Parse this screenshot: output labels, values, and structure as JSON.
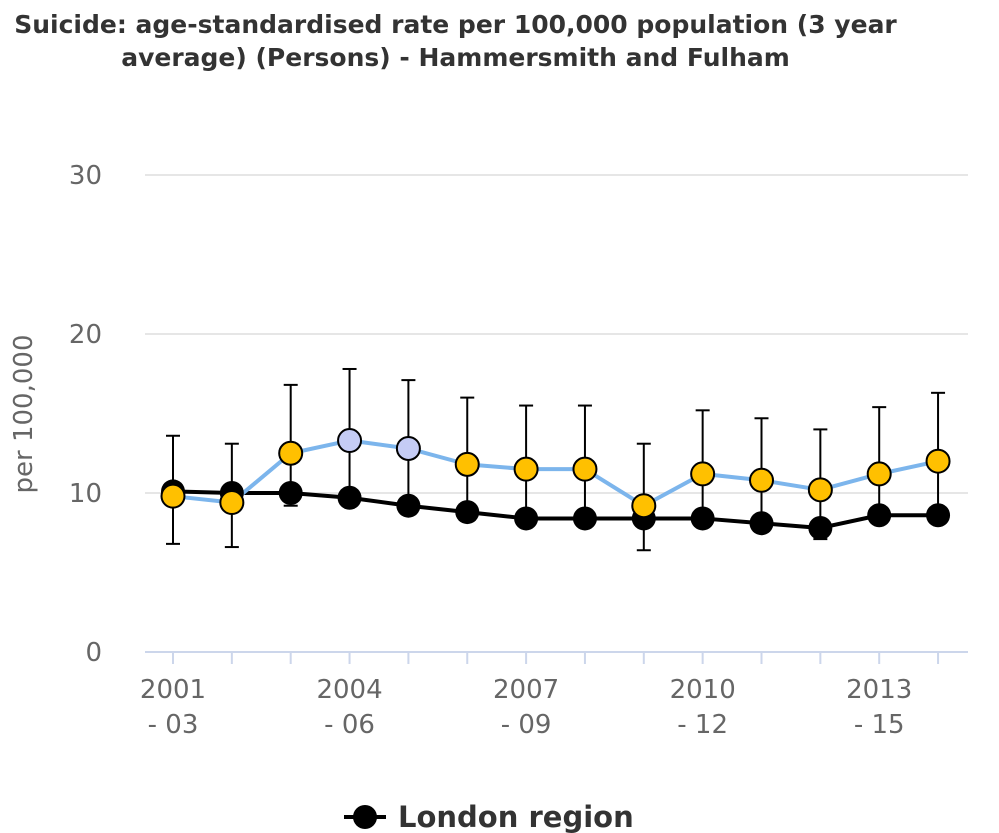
{
  "chart_data": {
    "type": "line",
    "title": "Suicide: age-standardised rate per 100,000 population (3 year average) (Persons) - Hammersmith and Fulham",
    "title_lines": [
      "Suicide: age-standardised rate per 100,000 population (3 year",
      "average) (Persons) - Hammersmith and Fulham"
    ],
    "xlabel": "",
    "ylabel": "per 100,000",
    "ylim": [
      0,
      30
    ],
    "yticks": [
      0,
      10,
      20,
      30
    ],
    "grid": true,
    "legend_position": "bottom-center",
    "categories": [
      "2001 - 03",
      "2002 - 04",
      "2003 - 05",
      "2004 - 06",
      "2005 - 07",
      "2006 - 08",
      "2007 - 09",
      "2008 - 10",
      "2009 - 11",
      "2010 - 12",
      "2011 - 13",
      "2012 - 14",
      "2013 - 15",
      "2014 - 16"
    ],
    "x_tick_labels": [
      {
        "index": 0,
        "lines": [
          "2001",
          "- 03"
        ]
      },
      {
        "index": 3,
        "lines": [
          "2004",
          "- 06"
        ]
      },
      {
        "index": 6,
        "lines": [
          "2007",
          "- 09"
        ]
      },
      {
        "index": 9,
        "lines": [
          "2010",
          "- 12"
        ]
      },
      {
        "index": 12,
        "lines": [
          "2013",
          "- 15"
        ]
      }
    ],
    "series": [
      {
        "name": "",
        "line_color": "#7cb5ec",
        "values": [
          9.8,
          9.4,
          12.5,
          13.3,
          12.8,
          11.8,
          11.5,
          11.5,
          9.2,
          11.2,
          10.8,
          10.2,
          11.2,
          12.0
        ],
        "ci_lower": [
          6.8,
          6.6,
          9.2,
          9.6,
          9.2,
          8.4,
          8.2,
          8.2,
          6.4,
          8.0,
          7.6,
          7.1,
          8.1,
          8.9
        ],
        "ci_upper": [
          13.6,
          13.1,
          16.8,
          17.8,
          17.1,
          16.0,
          15.5,
          15.5,
          13.1,
          15.2,
          14.7,
          14.0,
          15.4,
          16.3
        ],
        "point_colors": [
          "#ffc000",
          "#ffc000",
          "#ffc000",
          "#c5ccf5",
          "#c5ccf5",
          "#ffc000",
          "#ffc000",
          "#ffc000",
          "#ffc000",
          "#ffc000",
          "#ffc000",
          "#ffc000",
          "#ffc000",
          "#ffc000"
        ]
      },
      {
        "name": "London region",
        "line_color": "#000000",
        "values": [
          10.1,
          10.0,
          10.0,
          9.7,
          9.2,
          8.8,
          8.4,
          8.4,
          8.4,
          8.4,
          8.1,
          7.8,
          8.6,
          8.6
        ]
      }
    ]
  }
}
